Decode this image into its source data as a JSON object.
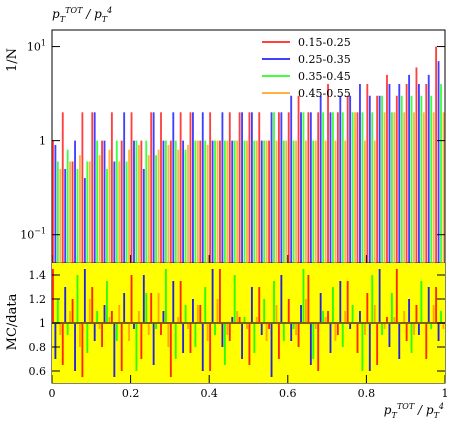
{
  "chart_data": {
    "type": "bar",
    "title": "p_T^TOT / p_T^4",
    "xlabel": "p_T^TOT / p_T^4",
    "xlim": [
      0,
      1
    ],
    "x_ticks": [
      "0",
      "0.2",
      "0.4",
      "0.6",
      "0.8",
      "1"
    ],
    "top_panel": {
      "ylabel": "1/N",
      "yscale": "log",
      "ylim": [
        0.05,
        15
      ],
      "y_ticks": [
        {
          "value": 0.1,
          "label": "10",
          "exp": "−1"
        },
        {
          "value": 1,
          "label": "1",
          "exp": ""
        },
        {
          "value": 10,
          "label": "10",
          "exp": "1"
        }
      ],
      "series": [
        {
          "name": "0.15-0.25",
          "color": "#ff0000",
          "values": [
            1.0,
            2.0,
            0.6,
            2.0,
            2.0,
            1.0,
            2.0,
            1.0,
            2.0,
            1.0,
            2.0,
            2.0,
            1.0,
            2.0,
            2.0,
            1.0,
            2.0,
            1.0,
            2.0,
            2.0,
            2.0,
            2.0,
            1.0,
            2.0,
            2.0,
            3.0,
            2.0,
            2.0,
            4.0,
            2.0,
            3.0,
            2.0,
            4.0,
            3.0,
            5.0,
            3.0,
            4.0,
            6.0,
            4.0,
            10.0
          ]
        },
        {
          "name": "0.25-0.35",
          "color": "#0000ff",
          "values": [
            0.9,
            0.5,
            1.0,
            0.4,
            2.0,
            1.0,
            0.6,
            2.0,
            1.0,
            0.5,
            2.0,
            1.0,
            2.0,
            1.0,
            2.0,
            2.0,
            1.0,
            2.0,
            1.0,
            2.0,
            2.0,
            1.0,
            2.0,
            2.0,
            3.0,
            2.0,
            2.0,
            3.0,
            2.0,
            3.0,
            3.0,
            4.0,
            3.0,
            3.0,
            4.0,
            4.0,
            5.0,
            4.0,
            5.0,
            7.0
          ]
        },
        {
          "name": "0.35-0.45",
          "color": "#00ff00",
          "values": [
            0.6,
            0.8,
            0.5,
            0.6,
            1.0,
            0.5,
            1.0,
            0.6,
            1.0,
            1.0,
            0.7,
            1.0,
            1.0,
            0.8,
            1.0,
            1.0,
            1.0,
            1.0,
            1.0,
            1.0,
            1.0,
            1.0,
            2.0,
            1.0,
            1.0,
            2.0,
            1.0,
            2.0,
            2.0,
            2.0,
            2.0,
            2.0,
            2.0,
            3.0,
            2.0,
            3.0,
            3.0,
            3.0,
            3.0,
            4.0
          ]
        },
        {
          "name": "0.45-0.55",
          "color": "#ff9900",
          "values": [
            0.5,
            0.6,
            0.7,
            0.6,
            0.7,
            0.8,
            0.6,
            0.8,
            0.9,
            0.7,
            0.8,
            0.9,
            0.8,
            0.9,
            1.0,
            0.9,
            1.0,
            1.0,
            1.0,
            1.0,
            1.0,
            1.0,
            1.0,
            1.0,
            1.0,
            1.0,
            1.0,
            1.0,
            1.0,
            1.0,
            2.0,
            1.0,
            1.0,
            2.0,
            2.0,
            2.0,
            2.0,
            2.0,
            2.0,
            2.0
          ]
        }
      ]
    },
    "ratio_panel": {
      "ylabel": "MC/data",
      "ylim": [
        0.5,
        1.5
      ],
      "y_ticks": [
        0.6,
        0.8,
        1.0,
        1.2,
        1.4
      ],
      "y_tick_labels": [
        "0.6",
        "0.8",
        "1",
        "1.2",
        "1.4"
      ],
      "reference_line": 1.0,
      "band_color": "#ffff00",
      "series": [
        {
          "name": "0.15-0.25",
          "color": "#ff0000",
          "values": [
            1.45,
            0.65,
            1.2,
            0.55,
            1.3,
            0.8,
            1.1,
            0.6,
            1.4,
            0.7,
            1.25,
            0.9,
            0.55,
            1.35,
            0.75,
            1.15,
            0.6,
            1.45,
            0.85,
            1.05,
            0.65,
            1.3,
            0.95,
            0.7,
            1.2,
            0.8,
            1.4,
            0.6,
            1.1,
            0.9,
            1.35,
            0.75,
            1.25,
            0.65,
            1.05,
            1.45,
            0.85,
            1.15,
            0.7,
            1.3
          ]
        },
        {
          "name": "0.25-0.35",
          "color": "#0000ff",
          "values": [
            0.7,
            1.3,
            0.6,
            1.45,
            0.85,
            1.15,
            0.55,
            1.25,
            0.95,
            1.4,
            0.65,
            1.1,
            1.35,
            0.75,
            1.2,
            0.6,
            1.45,
            0.8,
            1.05,
            0.7,
            1.3,
            0.9,
            0.55,
            1.4,
            0.85,
            1.15,
            0.65,
            1.25,
            0.75,
            1.35,
            0.95,
            1.1,
            0.6,
            1.45,
            0.8,
            0.7,
            1.2,
            0.9,
            1.3,
            0.85
          ]
        },
        {
          "name": "0.35-0.45",
          "color": "#00ff00",
          "values": [
            1.2,
            0.9,
            1.4,
            0.75,
            1.1,
            1.35,
            0.85,
            1.0,
            0.6,
            1.25,
            0.95,
            1.45,
            0.7,
            1.15,
            0.8,
            1.3,
            0.9,
            0.65,
            1.4,
            1.05,
            0.75,
            1.2,
            1.35,
            0.85,
            0.95,
            1.45,
            0.7,
            1.1,
            1.3,
            0.8,
            1.15,
            0.6,
            1.4,
            0.9,
            1.25,
            1.0,
            0.75,
            1.35,
            0.95,
            1.1
          ]
        },
        {
          "name": "0.45-0.55",
          "color": "#ff9900",
          "values": [
            0.9,
            1.1,
            0.8,
            1.2,
            0.95,
            1.05,
            1.15,
            0.85,
            1.1,
            0.9,
            1.25,
            0.8,
            1.05,
            0.95,
            1.15,
            0.85,
            1.2,
            0.9,
            1.1,
            0.95,
            1.05,
            0.85,
            1.15,
            1.0,
            0.9,
            1.2,
            0.95,
            1.05,
            0.85,
            1.1,
            1.0,
            0.9,
            1.15,
            0.95,
            1.05,
            1.1,
            0.9,
            1.0,
            1.15,
            0.95
          ]
        }
      ]
    },
    "legend_position": "top-right",
    "grid": false
  }
}
